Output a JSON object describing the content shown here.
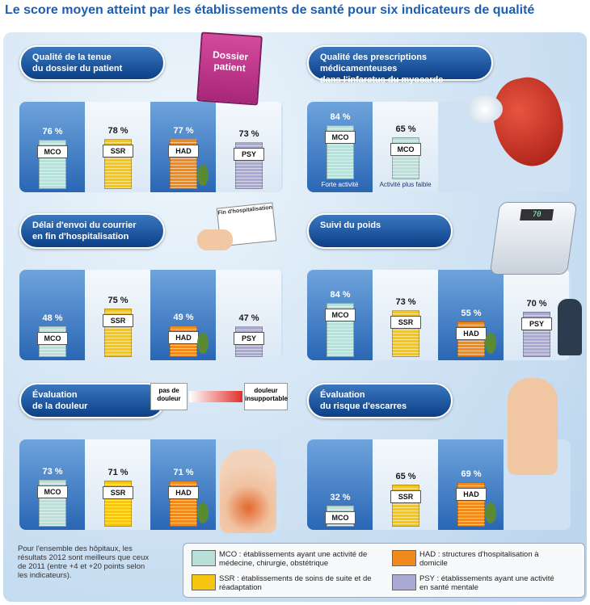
{
  "title": "Le score moyen atteint par les établissements de santé pour six indicateurs de qualité",
  "colors": {
    "MCO": "#b9dfd9",
    "SSR": "#f6c613",
    "HAD": "#f08a1c",
    "PSY": "#a9a9d4"
  },
  "chart_data": [
    {
      "type": "bar",
      "title": "Qualité de la tenue du dossier du patient",
      "categories": [
        "MCO",
        "SSR",
        "HAD",
        "PSY"
      ],
      "values": [
        76,
        78,
        77,
        73
      ],
      "value_labels": [
        "76 %",
        "78 %",
        "77 %",
        "73 %"
      ],
      "ylim": [
        0,
        100
      ]
    },
    {
      "type": "bar",
      "title": "Qualité des prescriptions médicamenteuses dans l'infarctus du myocarde",
      "categories": [
        "MCO",
        "MCO"
      ],
      "values": [
        84,
        65
      ],
      "value_labels": [
        "84 %",
        "65 %"
      ],
      "sublabels": [
        "Forte activité",
        "Activité plus faible"
      ],
      "ylim": [
        0,
        100
      ]
    },
    {
      "type": "bar",
      "title": "Délai d'envoi du courrier en fin d'hospitalisation",
      "categories": [
        "MCO",
        "SSR",
        "HAD",
        "PSY"
      ],
      "values": [
        48,
        75,
        49,
        47
      ],
      "value_labels": [
        "48 %",
        "75 %",
        "49 %",
        "47 %"
      ],
      "ylim": [
        0,
        100
      ]
    },
    {
      "type": "bar",
      "title": "Suivi du poids",
      "categories": [
        "MCO",
        "SSR",
        "HAD",
        "PSY"
      ],
      "values": [
        84,
        73,
        55,
        70
      ],
      "value_labels": [
        "84 %",
        "73 %",
        "55 %",
        "70 %"
      ],
      "ylim": [
        0,
        100
      ]
    },
    {
      "type": "bar",
      "title": "Évaluation de la douleur",
      "categories": [
        "MCO",
        "SSR",
        "HAD"
      ],
      "values": [
        73,
        71,
        71
      ],
      "value_labels": [
        "73 %",
        "71 %",
        "71 %"
      ],
      "ylim": [
        0,
        100
      ]
    },
    {
      "type": "bar",
      "title": "Évaluation du risque d'escarres",
      "categories": [
        "MCO",
        "SSR",
        "HAD"
      ],
      "values": [
        32,
        65,
        69
      ],
      "value_labels": [
        "32 %",
        "65 %",
        "69 %"
      ],
      "ylim": [
        0,
        100
      ]
    }
  ],
  "panel_titles": [
    [
      "Qualité de la tenue",
      "du dossier du patient"
    ],
    [
      "Qualité des prescriptions médicamenteuses",
      "dans l'infarctus du myocarde"
    ],
    [
      "Délai d'envoi du courrier",
      "en fin d'hospitalisation"
    ],
    [
      "Suivi du poids",
      ""
    ],
    [
      "Évaluation",
      "de la douleur"
    ],
    [
      "Évaluation",
      "du risque d'escarres"
    ]
  ],
  "decor": {
    "folder_label": [
      "Dossier",
      "patient"
    ],
    "letter_label": "Fin d'hospitalisation",
    "pain_low": [
      "pas de",
      "douleur"
    ],
    "pain_high": [
      "douleur",
      "insupportable"
    ],
    "scale_display": "70"
  },
  "note": "Pour l'ensemble des hôpitaux, les résultats 2012 sont meilleurs que ceux de 2011 (entre +4 et +20 points selon les indicateurs).",
  "legend": [
    {
      "code": "MCO",
      "text": "MCO : établissements ayant une activité de médecine, chirurgie, obstétrique"
    },
    {
      "code": "HAD",
      "text": "HAD : structures d'hospitalisation à domicile"
    },
    {
      "code": "SSR",
      "text": "SSR : établissements de soins de suite et de réadaptation"
    },
    {
      "code": "PSY",
      "text": "PSY : établissements ayant une activité en santé mentale"
    }
  ]
}
